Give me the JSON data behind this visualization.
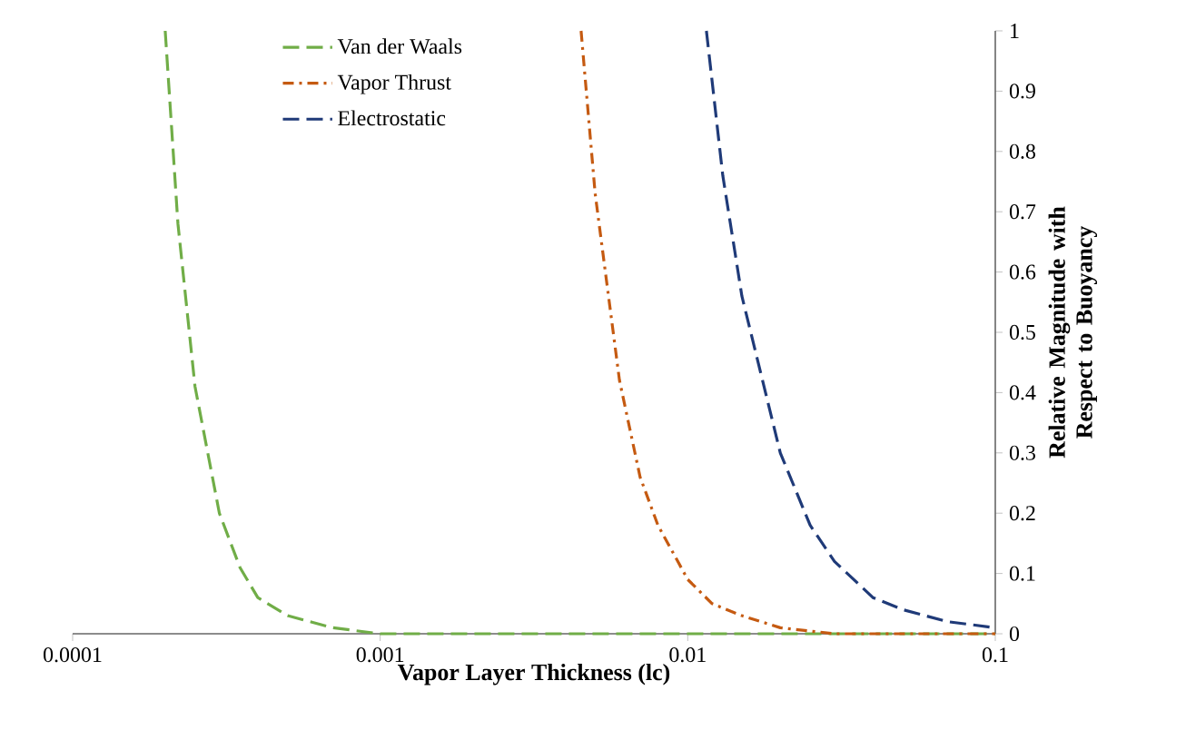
{
  "chart_data": {
    "type": "line",
    "xlabel": "Vapor Layer Thickness (lc)",
    "ylabel": "Relative Magnitude  with Respect to Buoyancy",
    "log": "x",
    "xlim": [
      0.0001,
      0.1
    ],
    "ylim": [
      0,
      1
    ],
    "xticks": [
      0.0001,
      0.001,
      0.01,
      0.1
    ],
    "yticks": [
      0,
      0.1,
      0.2,
      0.3,
      0.4,
      0.5,
      0.6,
      0.7,
      0.8,
      0.9,
      1
    ],
    "legend": "top left",
    "grid": false,
    "series": [
      {
        "name": "Van der Waals",
        "color": "#70ad47",
        "line_style": "dashed",
        "x": [
          0.0002,
          0.00022,
          0.00025,
          0.0003,
          0.00035,
          0.0004,
          0.0005,
          0.0007,
          0.001,
          0.1
        ],
        "values": [
          1,
          0.68,
          0.41,
          0.2,
          0.11,
          0.06,
          0.03,
          0.01,
          0,
          0
        ]
      },
      {
        "name": "Vapor Thrust",
        "color": "#c55a11",
        "line_style": "dashdot",
        "x": [
          0.0045,
          0.005,
          0.006,
          0.007,
          0.008,
          0.01,
          0.012,
          0.015,
          0.02,
          0.03,
          0.1
        ],
        "values": [
          1,
          0.73,
          0.42,
          0.26,
          0.18,
          0.09,
          0.05,
          0.03,
          0.01,
          0,
          0
        ]
      },
      {
        "name": "Electrostatic",
        "color": "#1f3a78",
        "line_style": "dashed",
        "x": [
          0.0115,
          0.013,
          0.015,
          0.02,
          0.025,
          0.03,
          0.04,
          0.05,
          0.07,
          0.1
        ],
        "values": [
          1,
          0.76,
          0.56,
          0.3,
          0.18,
          0.12,
          0.06,
          0.04,
          0.02,
          0.01
        ]
      }
    ]
  }
}
